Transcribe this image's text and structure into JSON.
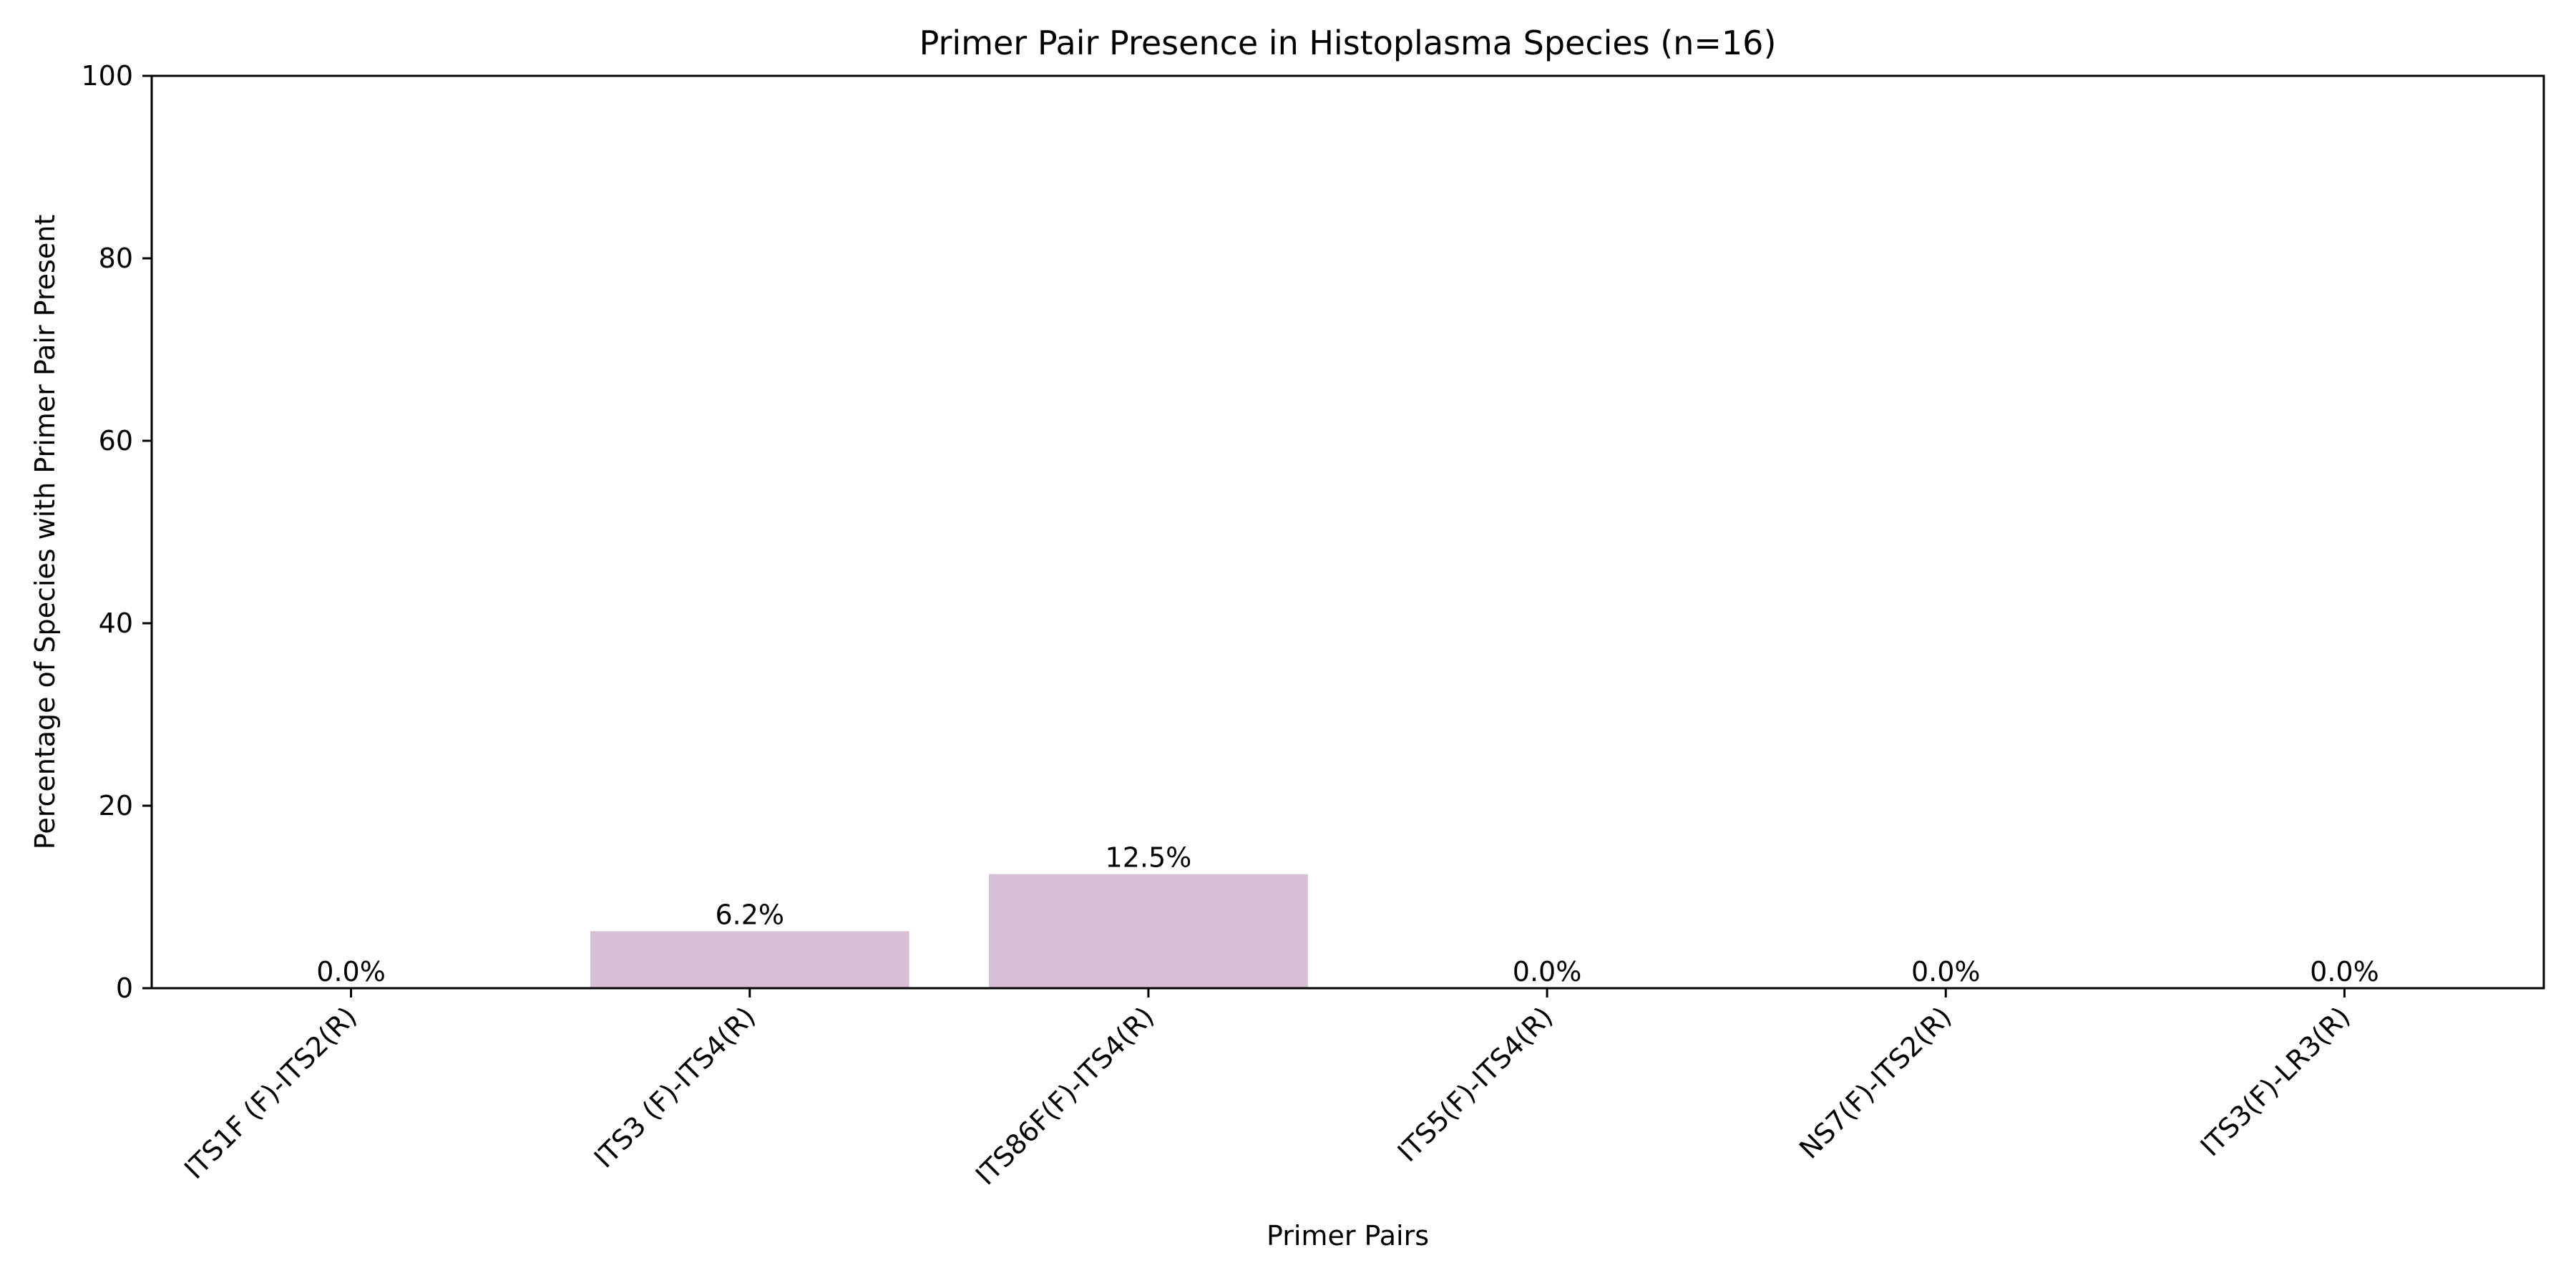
{
  "chart_data": {
    "type": "bar",
    "title": "Primer Pair Presence in Histoplasma Species (n=16)",
    "xlabel": "Primer Pairs",
    "ylabel": "Percentage of Species with Primer Pair Present",
    "categories": [
      "ITS1F (F)-ITS2(R)",
      "ITS3 (F)-ITS4(R)",
      "ITS86F(F)-ITS4(R)",
      "ITS5(F)-ITS4(R)",
      "NS7(F)-ITS2(R)",
      "ITS3(F)-LR3(R)"
    ],
    "values": [
      0.0,
      6.25,
      12.5,
      0.0,
      0.0,
      0.0
    ],
    "value_labels": [
      "0.0%",
      "6.2%",
      "12.5%",
      "0.0%",
      "0.0%",
      "0.0%"
    ],
    "ylim": [
      0,
      100
    ],
    "yticks": [
      0,
      20,
      40,
      60,
      80,
      100
    ],
    "bar_color": "#d8bfd8",
    "grid": false,
    "legend": "none"
  }
}
